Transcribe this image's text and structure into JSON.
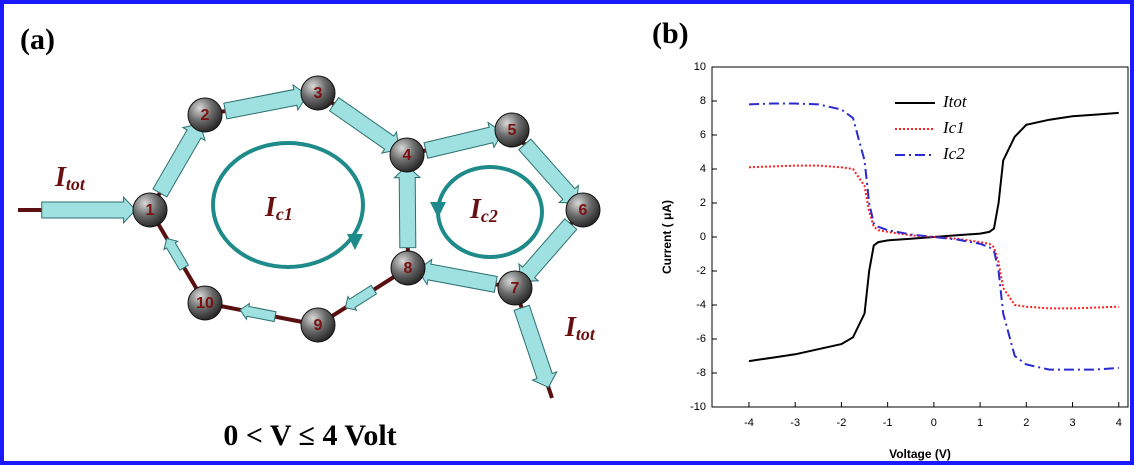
{
  "panel_a": {
    "label": "(a)",
    "nodes": [
      "1",
      "2",
      "3",
      "4",
      "5",
      "6",
      "7",
      "8",
      "9",
      "10"
    ],
    "currents": [
      {
        "base": "I",
        "sub": "tot"
      },
      {
        "base": "I",
        "sub": "tot"
      },
      {
        "base": "I",
        "sub": "c1"
      },
      {
        "base": "I",
        "sub": "c2"
      }
    ],
    "caption": "0 < V ≤  4 Volt"
  },
  "chart_data": {
    "type": "line",
    "label": "(b)",
    "x_label": "Voltage (V)",
    "y_label": "Current ( μA)",
    "x": [
      -4,
      -3.5,
      -3,
      -2.5,
      -2,
      -1.75,
      -1.5,
      -1.4,
      -1.3,
      -1.2,
      -1,
      -0.5,
      0,
      0.5,
      1,
      1.2,
      1.3,
      1.4,
      1.5,
      1.75,
      2,
      2.5,
      3,
      3.5,
      4
    ],
    "series": [
      {
        "name": "Itot",
        "color": "#000000",
        "dash": "none",
        "values": [
          -7.3,
          -7.1,
          -6.9,
          -6.6,
          -6.3,
          -5.9,
          -4.5,
          -2,
          -0.5,
          -0.3,
          -0.2,
          -0.1,
          0,
          0.1,
          0.2,
          0.3,
          0.5,
          2,
          4.5,
          5.9,
          6.6,
          6.9,
          7.1,
          7.2,
          7.3
        ]
      },
      {
        "name": "Ic1",
        "color": "#ff2020",
        "dash": "2,2",
        "values": [
          4.1,
          4.15,
          4.2,
          4.2,
          4.1,
          4.0,
          3.0,
          1.5,
          0.6,
          0.4,
          0.3,
          0.1,
          0,
          -0.1,
          -0.3,
          -0.4,
          -0.6,
          -1.5,
          -3.0,
          -4.0,
          -4.1,
          -4.2,
          -4.2,
          -4.15,
          -4.1
        ]
      },
      {
        "name": "Ic2",
        "color": "#2a2ad0",
        "dash": "10,4,2,4",
        "values": [
          7.8,
          7.85,
          7.85,
          7.8,
          7.5,
          7.0,
          4.5,
          2.0,
          0.8,
          0.6,
          0.4,
          0.15,
          0,
          -0.15,
          -0.4,
          -0.6,
          -0.8,
          -2.0,
          -4.5,
          -7.0,
          -7.5,
          -7.8,
          -7.8,
          -7.8,
          -7.7
        ]
      }
    ],
    "xlim": [
      -4.8,
      4.2
    ],
    "ylim": [
      -10,
      10
    ],
    "xticks": [
      -4,
      -3,
      -2,
      -1,
      0,
      1,
      2,
      3,
      4
    ],
    "yticks": [
      -10,
      -8,
      -6,
      -4,
      -2,
      0,
      2,
      4,
      6,
      8,
      10
    ]
  }
}
